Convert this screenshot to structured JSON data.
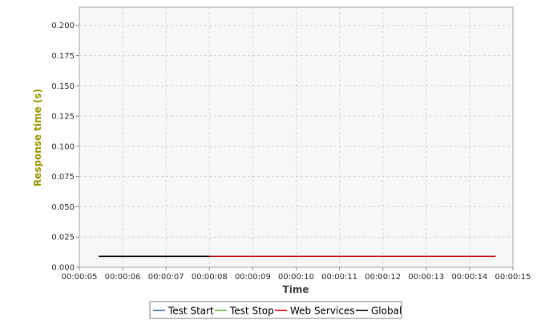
{
  "chart_data": {
    "type": "line",
    "title": "",
    "xlabel": "Time",
    "ylabel": "Response time (s)",
    "xlim": [
      "00:00:05",
      "00:00:15"
    ],
    "ylim": [
      0,
      0.215
    ],
    "x_ticks": [
      "00:00:05",
      "00:00:06",
      "00:00:07",
      "00:00:08",
      "00:00:09",
      "00:00:10",
      "00:00:11",
      "00:00:12",
      "00:00:13",
      "00:00:14",
      "00:00:15"
    ],
    "y_ticks": [
      "0.000",
      "0.025",
      "0.050",
      "0.075",
      "0.100",
      "0.125",
      "0.150",
      "0.175",
      "0.200"
    ],
    "grid": true,
    "legend_position": "bottom",
    "series": [
      {
        "name": "Test Start",
        "color": "#3366cc",
        "x": [],
        "y": []
      },
      {
        "name": "Test Stop",
        "color": "#66bb33",
        "x": [],
        "y": []
      },
      {
        "name": "Web Services",
        "color": "#cc0000",
        "x": [
          "00:00:05.45",
          "00:00:14.6"
        ],
        "y": [
          0.009,
          0.009
        ]
      },
      {
        "name": "Global",
        "color": "#000000",
        "x": [
          "00:00:05.45",
          "00:00:08"
        ],
        "y": [
          0.009,
          0.009
        ]
      }
    ],
    "colors": {
      "plot_background": "#f7f7f7",
      "gridline": "#d4d4d4",
      "axis_title": "#999900",
      "x_axis_title": "#444444"
    }
  }
}
